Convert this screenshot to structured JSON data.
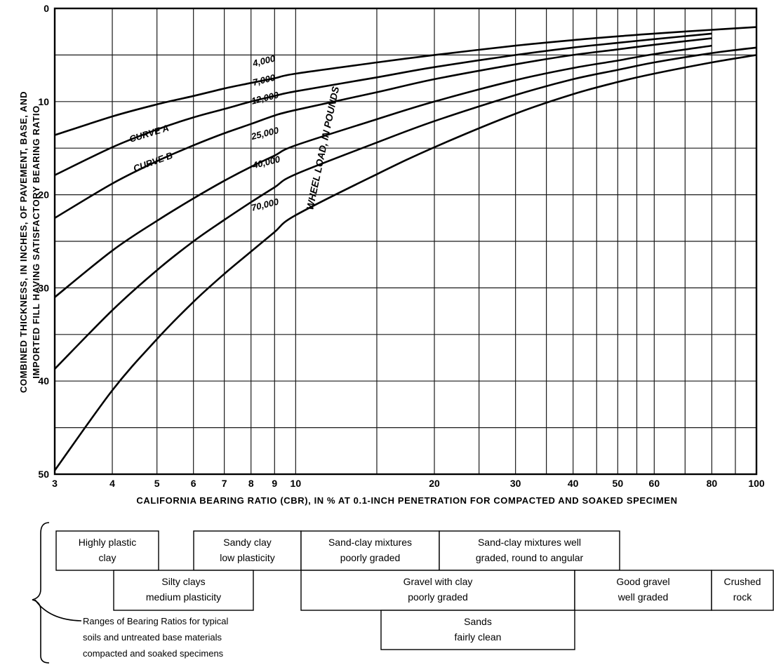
{
  "chart_data": {
    "type": "line",
    "title": "",
    "xlabel": "CALIFORNIA BEARING RATIO (CBR), IN % AT 0.1-INCH PENETRATION FOR COMPACTED AND SOAKED SPECIMEN",
    "ylabel_lines": [
      "COMBINED THICKNESS, IN INCHES, OF PAVEMENT, BASE, AND",
      "IMPORTED FILL HAVING SATISFACTORY BEARING RATIO"
    ],
    "x_scale": "log",
    "xlim": [
      3,
      100
    ],
    "ylim": [
      0,
      50
    ],
    "y_inverted": true,
    "grid": true,
    "x_ticks": [
      3,
      4,
      5,
      6,
      7,
      8,
      9,
      10,
      20,
      30,
      40,
      50,
      60,
      80,
      100
    ],
    "x_tick_labels": [
      "3",
      "4",
      "5",
      "6",
      "7",
      "8",
      "9",
      "10",
      "20",
      "30",
      "40",
      "50",
      "60",
      "80",
      "100"
    ],
    "x_grid_values": [
      3,
      4,
      5,
      6,
      7,
      8,
      9,
      10,
      15,
      20,
      25,
      30,
      35,
      40,
      45,
      50,
      55,
      60,
      70,
      80,
      90,
      100
    ],
    "y_ticks": [
      0,
      10,
      20,
      30,
      40,
      50
    ],
    "y_tick_labels": [
      "0",
      "10",
      "20",
      "30",
      "40",
      "50"
    ],
    "y_grid_values": [
      0,
      5,
      10,
      15,
      20,
      25,
      30,
      35,
      40,
      45,
      50
    ],
    "wheel_load_title": "WHEEL LOAD, IN POUNDS",
    "series": [
      {
        "name": "4,000",
        "x": [
          3,
          4,
          5,
          6,
          7,
          8,
          9,
          10,
          15,
          20,
          30,
          40,
          50,
          60,
          80,
          100
        ],
        "y": [
          13.6,
          11.6,
          10.3,
          9.4,
          8.6,
          8.0,
          7.5,
          7.0,
          5.8,
          5.0,
          4.0,
          3.4,
          3.0,
          2.7,
          2.3,
          2.0
        ]
      },
      {
        "name": "7,000",
        "x": [
          3,
          4,
          5,
          6,
          7,
          8,
          9,
          10,
          15,
          20,
          30,
          40,
          50,
          60,
          80
        ],
        "y": [
          17.9,
          14.9,
          13.0,
          11.7,
          10.8,
          10.0,
          9.4,
          8.9,
          7.4,
          6.3,
          5.0,
          4.2,
          3.7,
          3.3,
          2.7
        ]
      },
      {
        "name": "12,000",
        "x": [
          3,
          4,
          5,
          6,
          7,
          8,
          9,
          10,
          15,
          20,
          30,
          40,
          50,
          60,
          80
        ],
        "y": [
          22.5,
          18.8,
          16.4,
          14.7,
          13.4,
          12.4,
          11.5,
          10.9,
          9.0,
          7.6,
          6.0,
          5.0,
          4.4,
          3.9,
          3.2
        ]
      },
      {
        "name": "25,000",
        "x": [
          3,
          4,
          5,
          6,
          7,
          8,
          9,
          10,
          15,
          20,
          30,
          40,
          50,
          60,
          80
        ],
        "y": [
          31.0,
          26.0,
          22.8,
          20.4,
          18.5,
          17.0,
          15.8,
          14.7,
          11.9,
          10.0,
          7.7,
          6.4,
          5.6,
          4.9,
          4.0
        ]
      },
      {
        "name": "40,000",
        "x": [
          3,
          4,
          5,
          6,
          7,
          8,
          9,
          10,
          15,
          20,
          30,
          40,
          50,
          60,
          80,
          100
        ],
        "y": [
          38.7,
          32.4,
          28.1,
          25.0,
          22.7,
          20.8,
          19.2,
          17.8,
          14.4,
          12.1,
          9.3,
          7.6,
          6.6,
          5.8,
          4.8,
          4.2
        ]
      },
      {
        "name": "70,000",
        "x": [
          3,
          4,
          5,
          6,
          7,
          8,
          9,
          10,
          15,
          20,
          30,
          40,
          50,
          60,
          80,
          100
        ],
        "y": [
          49.6,
          41.0,
          35.5,
          31.5,
          28.5,
          26.1,
          24.0,
          22.2,
          17.8,
          14.9,
          11.3,
          9.2,
          7.9,
          7.0,
          5.8,
          5.0
        ]
      }
    ],
    "annotations": [
      "CURVE A",
      "CURVE B"
    ],
    "soil_ranges": [
      {
        "label_lines": [
          "Highly plastic",
          "clay"
        ],
        "cbr_range": [
          3,
          5
        ]
      },
      {
        "label_lines": [
          "Sandy clay",
          "low plasticity"
        ],
        "cbr_range": [
          6,
          10
        ]
      },
      {
        "label_lines": [
          "Sand-clay mixtures",
          "poorly graded"
        ],
        "cbr_range": [
          10,
          20
        ]
      },
      {
        "label_lines": [
          "Sand-clay mixtures well",
          "graded, round to angular"
        ],
        "cbr_range": [
          20,
          50
        ]
      },
      {
        "label_lines": [
          "Silty clays",
          "medium plasticity"
        ],
        "cbr_range": [
          4.5,
          9
        ]
      },
      {
        "label_lines": [
          "Gravel with clay",
          "poorly graded"
        ],
        "cbr_range": [
          10,
          40
        ]
      },
      {
        "label_lines": [
          "Good gravel",
          "well graded"
        ],
        "cbr_range": [
          40,
          80
        ]
      },
      {
        "label_lines": [
          "Crushed",
          "rock"
        ],
        "cbr_range": [
          80,
          100
        ]
      },
      {
        "label_lines": [
          "Sands",
          "fairly clean"
        ],
        "cbr_range": [
          15,
          40
        ]
      }
    ],
    "soil_note_lines": [
      "Ranges of Bearing Ratios for typical",
      "soils and untreated base materials",
      "compacted and soaked specimens"
    ]
  }
}
